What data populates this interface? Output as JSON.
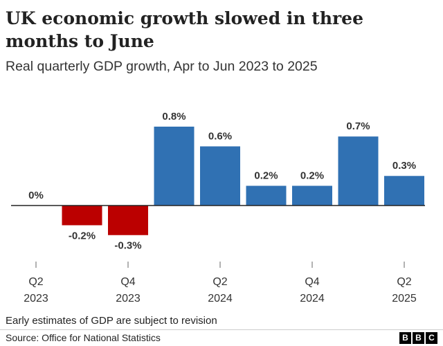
{
  "chart_data": {
    "type": "bar",
    "title": "UK economic growth slowed in three months to June",
    "subtitle": "Real quarterly GDP growth, Apr to Jun 2023 to 2025",
    "categories": [
      "Q2\n2023",
      null,
      "Q4\n2023",
      null,
      "Q2\n2024",
      null,
      "Q4\n2024",
      null,
      "Q2\n2025"
    ],
    "values": [
      0,
      -0.2,
      -0.3,
      0.8,
      0.6,
      0.2,
      0.2,
      0.7,
      0.3
    ],
    "value_labels": [
      "0%",
      "-0.2%",
      "-0.3%",
      "0.8%",
      "0.6%",
      "0.2%",
      "0.2%",
      "0.7%",
      "0.3%"
    ],
    "color_positive": "#3071b3",
    "color_negative": "#bb0000",
    "note": "Early estimates of GDP are subject to revision",
    "source": "Source: Office for National Statistics",
    "logo": [
      "B",
      "B",
      "C"
    ]
  }
}
